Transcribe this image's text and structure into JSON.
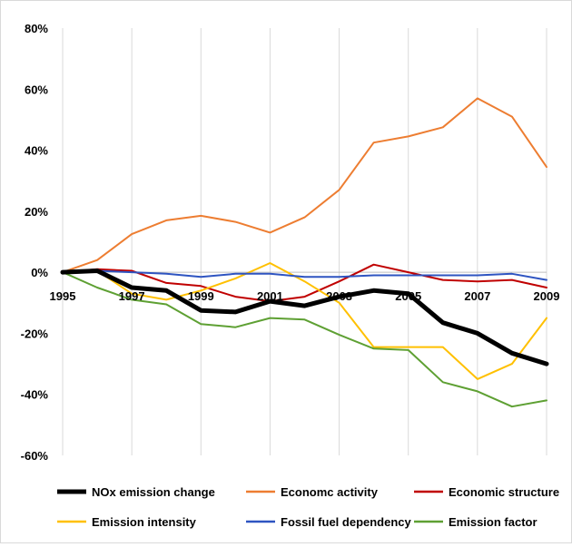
{
  "chart_data": {
    "type": "line",
    "x": [
      1995,
      1996,
      1997,
      1998,
      1999,
      2000,
      2001,
      2002,
      2003,
      2004,
      2005,
      2006,
      2007,
      2008,
      2009
    ],
    "x_tick_labels": [
      "1995",
      "1997",
      "1999",
      "2001",
      "2003",
      "2005",
      "2007",
      "2009"
    ],
    "y_tick_labels": [
      "80%",
      "60%",
      "40%",
      "20%",
      "0%",
      "-20%",
      "-40%",
      "-60%"
    ],
    "ylim": [
      -60,
      80
    ],
    "y_unit": "percent",
    "grid": "vertical",
    "legend_position": "bottom",
    "series": [
      {
        "name": "NOx emission change",
        "color": "#000000",
        "values": [
          0,
          0.5,
          -5,
          -6,
          -12.5,
          -13,
          -9.5,
          -11,
          -8,
          -6,
          -7,
          -16.5,
          -20,
          -26.5,
          -30
        ]
      },
      {
        "name": "Economc activity",
        "color": "#ED7D31",
        "values": [
          0,
          4,
          12.5,
          17,
          18.5,
          16.5,
          13,
          18,
          27,
          42.5,
          44.5,
          47.5,
          57,
          51,
          34.5
        ]
      },
      {
        "name": "Economic structure",
        "color": "#C00000",
        "values": [
          0,
          1,
          0.5,
          -3.5,
          -4.5,
          -8,
          -9.5,
          -8,
          -3,
          2.5,
          0,
          -2.5,
          -3,
          -2.5,
          -5
        ]
      },
      {
        "name": "Emission intensity",
        "color": "#FFC000",
        "values": [
          0,
          0.5,
          -7,
          -9,
          -6,
          -2,
          3,
          -3,
          -10,
          -24.5,
          -24.5,
          -24.5,
          -35,
          -30,
          -15
        ]
      },
      {
        "name": "Fossil fuel dependency",
        "color": "#2E54C1",
        "values": [
          0,
          0.5,
          0,
          -0.5,
          -1.5,
          -0.5,
          -0.5,
          -1.5,
          -1.5,
          -1,
          -1,
          -1,
          -1,
          -0.5,
          -2.5
        ]
      },
      {
        "name": "Emission factor",
        "color": "#5EA033",
        "values": [
          0,
          -5,
          -9,
          -10.5,
          -17,
          -18,
          -15,
          -15.5,
          -20.5,
          -25,
          -25.5,
          -36,
          -39,
          -44,
          -42
        ]
      }
    ]
  }
}
